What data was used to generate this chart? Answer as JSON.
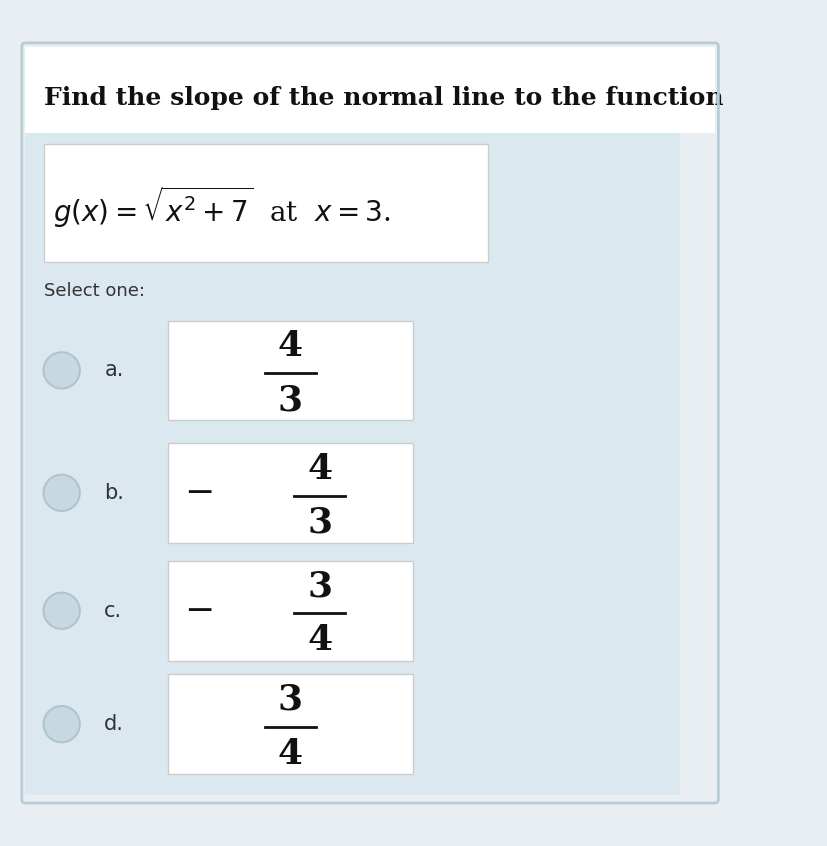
{
  "bg_color": "#dce8f0",
  "white_color": "#ffffff",
  "outer_bg": "#e8eef2",
  "title_text": "Find the slope of the normal line to the function",
  "title_fontsize": 18,
  "function_text": "$g(x)=\\sqrt{x^2+7}$  at  $x=3$.",
  "function_fontsize": 20,
  "select_text": "Select one:",
  "select_fontsize": 13,
  "options": [
    {
      "label": "a.",
      "num": "4",
      "den": "3",
      "neg": false
    },
    {
      "label": "b.",
      "num": "4",
      "den": "3",
      "neg": true
    },
    {
      "label": "c.",
      "num": "3",
      "den": "4",
      "neg": true
    },
    {
      "label": "d.",
      "num": "3",
      "den": "4",
      "neg": false
    }
  ],
  "option_fontsize": 26,
  "label_fontsize": 15,
  "radio_color": "#c8d8e0",
  "radio_edge_color": "#b0c4cc"
}
